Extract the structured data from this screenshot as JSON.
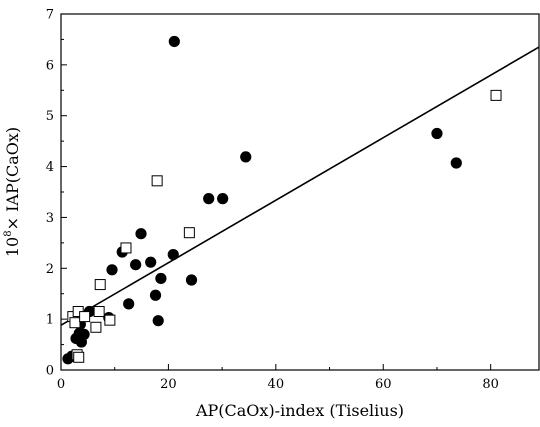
{
  "chart_data": {
    "type": "scatter",
    "xlabel": "AP(CaOx)-index (Tiselius)",
    "ylabel_prefix": "10",
    "ylabel_exponent": "8",
    "ylabel_rest": "× IAP(CaOx)",
    "xlim": [
      0,
      89
    ],
    "ylim": [
      0,
      7
    ],
    "x_ticks": [
      0,
      20,
      40,
      60,
      80
    ],
    "y_ticks": [
      0,
      1,
      2,
      3,
      4,
      5,
      6,
      7
    ],
    "grid": false,
    "colors": {
      "filled": "#000000",
      "open_fill": "#ffffff",
      "stroke": "#000000"
    },
    "series": [
      {
        "marker": "filled-circle",
        "points": [
          [
            1.3,
            0.22
          ],
          [
            2.0,
            0.27
          ],
          [
            2.8,
            0.62
          ],
          [
            3.4,
            0.72
          ],
          [
            3.6,
            0.9
          ],
          [
            3.8,
            0.55
          ],
          [
            4.3,
            0.7
          ],
          [
            5.3,
            1.15
          ],
          [
            8.9,
            1.03
          ],
          [
            9.5,
            1.97
          ],
          [
            11.4,
            2.32
          ],
          [
            12.6,
            1.3
          ],
          [
            13.9,
            2.07
          ],
          [
            14.9,
            2.68
          ],
          [
            16.7,
            2.12
          ],
          [
            17.6,
            1.47
          ],
          [
            18.1,
            0.97
          ],
          [
            18.6,
            1.8
          ],
          [
            20.9,
            2.27
          ],
          [
            21.1,
            6.46
          ],
          [
            24.3,
            1.77
          ],
          [
            27.5,
            3.37
          ],
          [
            30.1,
            3.37
          ],
          [
            34.4,
            4.19
          ],
          [
            70.0,
            4.65
          ],
          [
            73.6,
            4.07
          ]
        ]
      },
      {
        "marker": "open-square",
        "points": [
          [
            2.2,
            1.05
          ],
          [
            2.6,
            0.93
          ],
          [
            3.0,
            0.3
          ],
          [
            3.2,
            1.15
          ],
          [
            3.3,
            0.25
          ],
          [
            4.4,
            1.05
          ],
          [
            6.5,
            0.84
          ],
          [
            7.1,
            1.15
          ],
          [
            7.3,
            1.68
          ],
          [
            9.1,
            0.98
          ],
          [
            12.1,
            2.4
          ],
          [
            17.9,
            3.72
          ],
          [
            23.9,
            2.7
          ],
          [
            81.0,
            5.4
          ]
        ]
      }
    ],
    "fit_line": {
      "x": [
        0,
        89
      ],
      "y": [
        0.88,
        6.35
      ]
    }
  }
}
